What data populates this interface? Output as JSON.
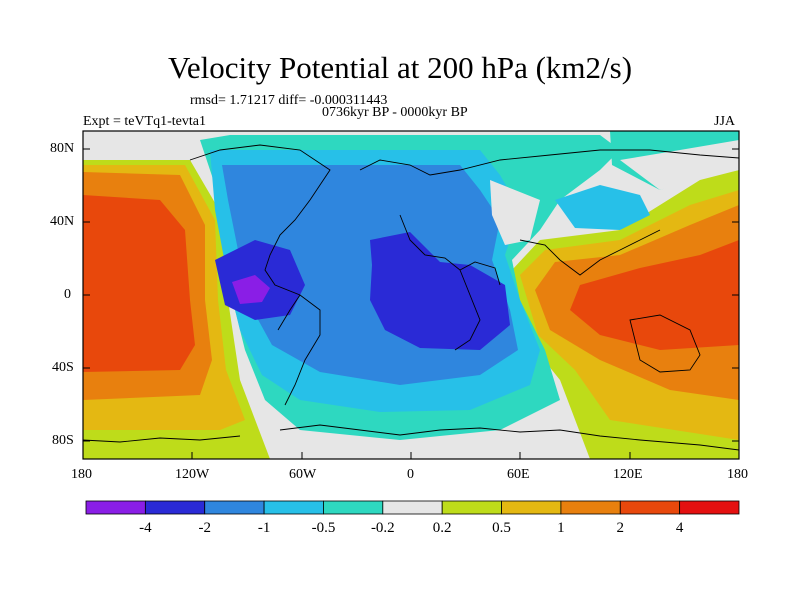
{
  "title": "Velocity Potential at 200 hPa (km2/s)",
  "stats": "rmsd= 1.71217 diff= -0.000311443",
  "period": "0736kyr BP - 0000kyr BP",
  "expt": "Expt = teVTq1-tevta1",
  "season": "JJA",
  "lat_ticks": [
    "80N",
    "40N",
    "0",
    "40S",
    "80S"
  ],
  "lon_ticks": [
    "180",
    "120W",
    "60W",
    "0",
    "60E",
    "120E",
    "180"
  ],
  "colorbar": {
    "labels": [
      "-4",
      "-2",
      "-1",
      "-0.5",
      "-0.2",
      "0.2",
      "0.5",
      "1",
      "2",
      "4"
    ],
    "colors": [
      "#8a1ee6",
      "#2a2ad6",
      "#2f86de",
      "#27c0e8",
      "#2ed8c0",
      "#e6e6e6",
      "#bedc1a",
      "#e4b812",
      "#e8800e",
      "#e8480c",
      "#e41010"
    ]
  },
  "colors": {
    "coast": "#000000",
    "frame": "#000000"
  }
}
